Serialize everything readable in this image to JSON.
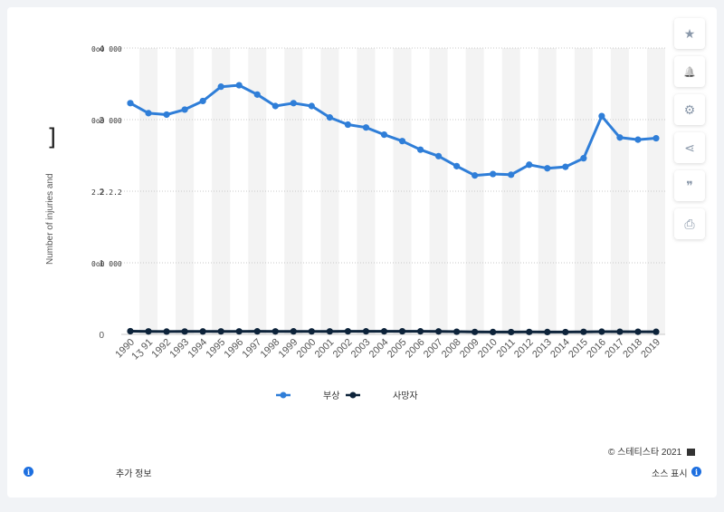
{
  "chart_data": {
    "type": "line",
    "ylabel": "Number of injuries and",
    "y_tick_labels": [
      "0",
      "1",
      "2",
      "3",
      "4"
    ],
    "y_tick_suffixes": [
      "",
      "0o0 000",
      "2.2.2.2",
      "0o0 000",
      "0o0 000"
    ],
    "ylim": [
      0,
      4000000
    ],
    "grid": true,
    "legend_position": "bottom",
    "x": [
      "1990",
      "1991",
      "1992",
      "1993",
      "1994",
      "1995",
      "1996",
      "1997",
      "1998",
      "1999",
      "2000",
      "2001",
      "2002",
      "2003",
      "2004",
      "2005",
      "2006",
      "2007",
      "2008",
      "2009",
      "2010",
      "2011",
      "2012",
      "2013",
      "2014",
      "2015",
      "2016",
      "2017",
      "2018",
      "2019"
    ],
    "x_tick_labels": [
      "1990",
      "1ʒ 91",
      "1992",
      "1993",
      "1994",
      "1995",
      "1996",
      "1997",
      "1998",
      "1999",
      "2000",
      "2001",
      "2002",
      "2003",
      "2004",
      "2005",
      "2006",
      "2007",
      "2008",
      "2009",
      "2010",
      "2011",
      "2012",
      "2013",
      "2014",
      "2015",
      "2016",
      "2017",
      "2018",
      "2019"
    ],
    "series": [
      {
        "name": "부상",
        "color": "#2f7ed8",
        "values": [
          3230000,
          3090000,
          3070000,
          3140000,
          3260000,
          3460000,
          3480000,
          3350000,
          3190000,
          3230000,
          3190000,
          3030000,
          2930000,
          2890000,
          2790000,
          2700000,
          2580000,
          2490000,
          2350000,
          2220000,
          2240000,
          2230000,
          2370000,
          2320000,
          2340000,
          2460000,
          3050000,
          2750000,
          2720000,
          2740000
        ]
      },
      {
        "name": "사망자",
        "color": "#0d233a",
        "values": [
          44600,
          41500,
          39300,
          40200,
          40700,
          41800,
          42100,
          42500,
          41500,
          42400,
          41900,
          42200,
          43000,
          42900,
          42800,
          43500,
          42700,
          41300,
          37400,
          33900,
          32999,
          32500,
          33800,
          32900,
          32700,
          35500,
          37800,
          37500,
          36800,
          36100
        ]
      }
    ]
  },
  "footer": {
    "copyright": "© 스테티스타 2021",
    "more_info": "추가 정보",
    "source": "소스 표시"
  },
  "side_buttons": [
    {
      "name": "star-icon",
      "glyph": "★"
    },
    {
      "name": "bell-icon",
      "glyph": "🔔"
    },
    {
      "name": "gear-icon",
      "glyph": "⚙"
    },
    {
      "name": "share-icon",
      "glyph": "⋖"
    },
    {
      "name": "quote-icon",
      "glyph": "❞"
    },
    {
      "name": "print-icon",
      "glyph": "⎙"
    }
  ],
  "colors": {
    "band": "#f3f3f3",
    "grid": "#c8c8c8",
    "axis_text": "#555555",
    "accent": "#2f7ed8"
  }
}
